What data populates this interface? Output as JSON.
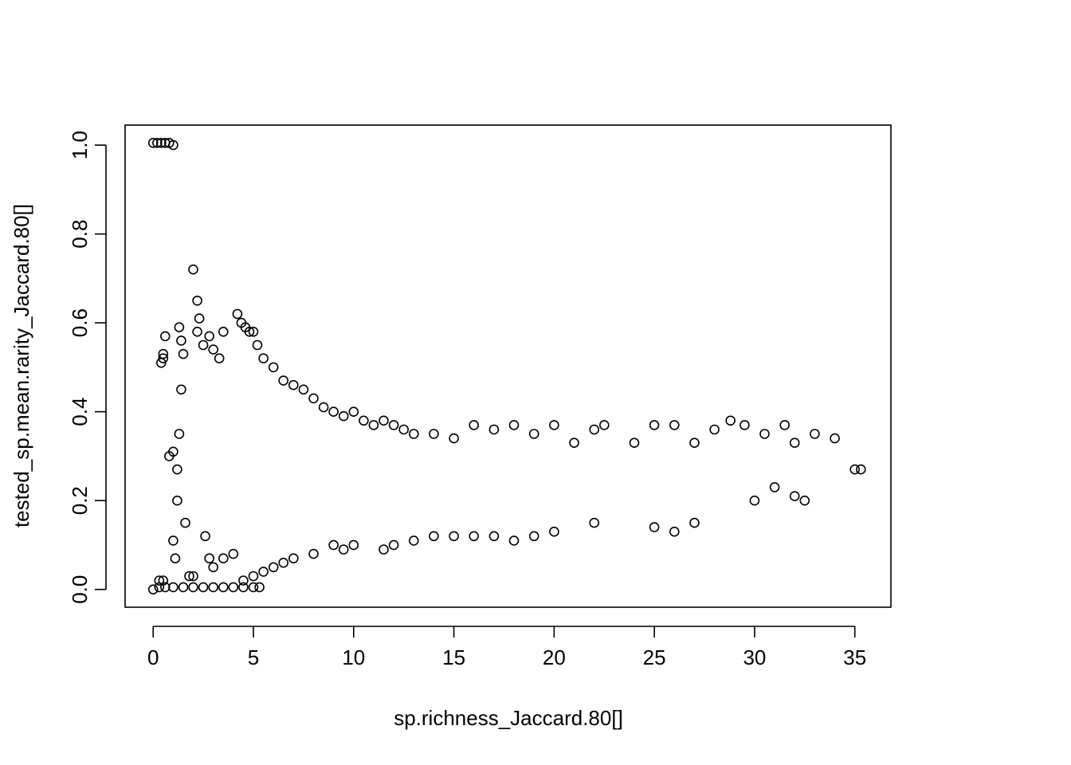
{
  "chart_data": {
    "type": "scatter",
    "title": "",
    "xlabel": "sp.richness_Jaccard.80[]",
    "ylabel": "tested_sp.mean.rarity_Jaccard.80[]",
    "xlim": [
      -1.4,
      36.8
    ],
    "ylim": [
      -0.04,
      1.045
    ],
    "grid": false,
    "legend": "none",
    "marker": "open-circle",
    "point_color": "#000000",
    "x_ticks": [
      0,
      5,
      10,
      15,
      20,
      25,
      30,
      35
    ],
    "x_tick_labels": [
      "0",
      "5",
      "10",
      "15",
      "20",
      "25",
      "30",
      "35"
    ],
    "y_ticks": [
      0.0,
      0.2,
      0.4,
      0.6,
      0.8,
      1.0
    ],
    "y_tick_labels": [
      "0.0",
      "0.2",
      "0.4",
      "0.6",
      "0.8",
      "1.0"
    ],
    "series": [
      {
        "points": [
          [
            0.0,
            1.005
          ],
          [
            0.2,
            1.005
          ],
          [
            0.4,
            1.005
          ],
          [
            0.6,
            1.005
          ],
          [
            0.8,
            1.005
          ],
          [
            1.0,
            1.0
          ],
          [
            0.0,
            0.0
          ],
          [
            0.3,
            0.005
          ],
          [
            0.6,
            0.005
          ],
          [
            1.0,
            0.005
          ],
          [
            1.5,
            0.005
          ],
          [
            2.0,
            0.005
          ],
          [
            2.5,
            0.005
          ],
          [
            3.0,
            0.005
          ],
          [
            3.5,
            0.005
          ],
          [
            4.0,
            0.005
          ],
          [
            4.5,
            0.005
          ],
          [
            5.0,
            0.005
          ],
          [
            5.3,
            0.005
          ],
          [
            0.4,
            0.51
          ],
          [
            0.5,
            0.53
          ],
          [
            0.6,
            0.57
          ],
          [
            0.5,
            0.52
          ],
          [
            0.8,
            0.3
          ],
          [
            1.0,
            0.31
          ],
          [
            1.0,
            0.11
          ],
          [
            1.1,
            0.07
          ],
          [
            1.2,
            0.2
          ],
          [
            1.3,
            0.59
          ],
          [
            1.4,
            0.56
          ],
          [
            1.5,
            0.53
          ],
          [
            1.4,
            0.45
          ],
          [
            1.3,
            0.35
          ],
          [
            1.2,
            0.27
          ],
          [
            1.6,
            0.15
          ],
          [
            1.8,
            0.03
          ],
          [
            2.0,
            0.03
          ],
          [
            2.0,
            0.72
          ],
          [
            2.2,
            0.65
          ],
          [
            2.3,
            0.61
          ],
          [
            2.2,
            0.58
          ],
          [
            2.5,
            0.55
          ],
          [
            2.8,
            0.57
          ],
          [
            3.0,
            0.54
          ],
          [
            3.5,
            0.58
          ],
          [
            3.3,
            0.52
          ],
          [
            2.6,
            0.12
          ],
          [
            2.8,
            0.07
          ],
          [
            3.0,
            0.05
          ],
          [
            3.5,
            0.07
          ],
          [
            4.0,
            0.08
          ],
          [
            4.2,
            0.62
          ],
          [
            4.4,
            0.6
          ],
          [
            4.6,
            0.59
          ],
          [
            4.8,
            0.58
          ],
          [
            5.0,
            0.58
          ],
          [
            5.2,
            0.55
          ],
          [
            5.5,
            0.52
          ],
          [
            6.0,
            0.5
          ],
          [
            6.5,
            0.47
          ],
          [
            7.0,
            0.46
          ],
          [
            7.5,
            0.45
          ],
          [
            8.0,
            0.43
          ],
          [
            8.5,
            0.41
          ],
          [
            9.0,
            0.4
          ],
          [
            9.5,
            0.39
          ],
          [
            10.0,
            0.4
          ],
          [
            10.5,
            0.38
          ],
          [
            11.0,
            0.37
          ],
          [
            11.5,
            0.38
          ],
          [
            12.0,
            0.37
          ],
          [
            12.5,
            0.36
          ],
          [
            13.0,
            0.35
          ],
          [
            14.0,
            0.35
          ],
          [
            15.0,
            0.34
          ],
          [
            16.0,
            0.37
          ],
          [
            17.0,
            0.36
          ],
          [
            18.0,
            0.37
          ],
          [
            19.0,
            0.35
          ],
          [
            20.0,
            0.37
          ],
          [
            21.0,
            0.33
          ],
          [
            22.0,
            0.36
          ],
          [
            22.5,
            0.37
          ],
          [
            24.0,
            0.33
          ],
          [
            25.0,
            0.37
          ],
          [
            26.0,
            0.37
          ],
          [
            27.0,
            0.33
          ],
          [
            28.0,
            0.36
          ],
          [
            28.8,
            0.38
          ],
          [
            29.5,
            0.37
          ],
          [
            30.5,
            0.35
          ],
          [
            31.5,
            0.37
          ],
          [
            32.0,
            0.33
          ],
          [
            33.0,
            0.35
          ],
          [
            34.0,
            0.34
          ],
          [
            35.0,
            0.27
          ],
          [
            35.3,
            0.27
          ],
          [
            32.0,
            0.21
          ],
          [
            32.5,
            0.2
          ],
          [
            31.0,
            0.23
          ],
          [
            30.0,
            0.2
          ],
          [
            27.0,
            0.15
          ],
          [
            26.0,
            0.13
          ],
          [
            25.0,
            0.14
          ],
          [
            22.0,
            0.15
          ],
          [
            20.0,
            0.13
          ],
          [
            19.0,
            0.12
          ],
          [
            18.0,
            0.11
          ],
          [
            17.0,
            0.12
          ],
          [
            16.0,
            0.12
          ],
          [
            15.0,
            0.12
          ],
          [
            14.0,
            0.12
          ],
          [
            13.0,
            0.11
          ],
          [
            12.0,
            0.1
          ],
          [
            11.5,
            0.09
          ],
          [
            10.0,
            0.1
          ],
          [
            9.5,
            0.09
          ],
          [
            9.0,
            0.1
          ],
          [
            8.0,
            0.08
          ],
          [
            7.0,
            0.07
          ],
          [
            6.5,
            0.06
          ],
          [
            6.0,
            0.05
          ],
          [
            5.5,
            0.04
          ],
          [
            5.0,
            0.03
          ],
          [
            4.5,
            0.02
          ],
          [
            0.5,
            0.02
          ],
          [
            0.3,
            0.02
          ]
        ]
      }
    ]
  }
}
